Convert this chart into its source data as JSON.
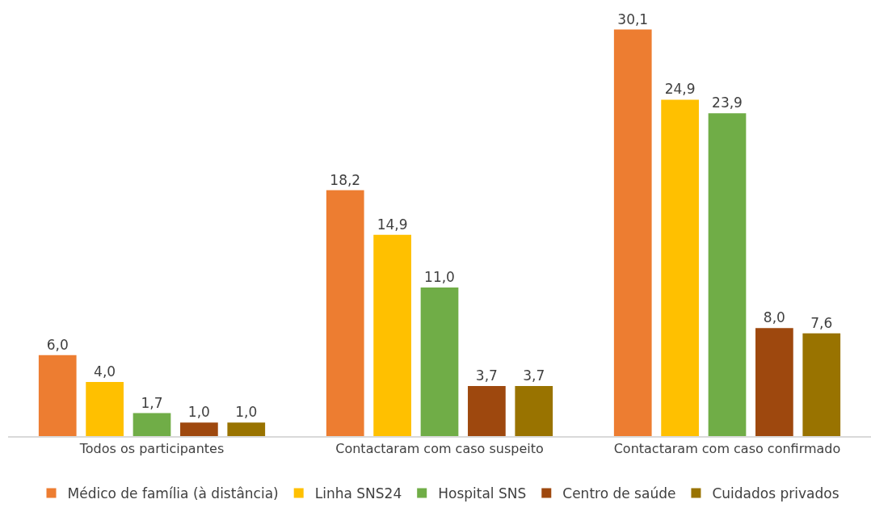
{
  "chart_data": {
    "type": "bar",
    "categories": [
      "Todos os participantes",
      "Contactaram com caso suspeito",
      "Contactaram com caso confirmado"
    ],
    "series": [
      {
        "name": "Médico de família (à distância)",
        "color": "#ed7d31",
        "values": [
          6.0,
          18.2,
          30.1
        ],
        "value_labels": [
          "6,0",
          "18,2",
          "30,1"
        ]
      },
      {
        "name": "Linha SNS24",
        "color": "#ffc000",
        "values": [
          4.0,
          14.9,
          24.9
        ],
        "value_labels": [
          "4,0",
          "14,9",
          "24,9"
        ]
      },
      {
        "name": "Hospital SNS",
        "color": "#70ad47",
        "values": [
          1.7,
          11.0,
          23.9
        ],
        "value_labels": [
          "1,7",
          "11,0",
          "23,9"
        ]
      },
      {
        "name": "Centro de saúde",
        "color": "#9e480e",
        "values": [
          1.0,
          3.7,
          8.0
        ],
        "value_labels": [
          "1,0",
          "3,7",
          "8,0"
        ]
      },
      {
        "name": "Cuidados privados",
        "color": "#997300",
        "values": [
          1.0,
          3.7,
          7.6
        ],
        "value_labels": [
          "1,0",
          "3,7",
          "7,6"
        ]
      }
    ],
    "tick_labels": "x",
    "grid": false,
    "legend": "bottom"
  }
}
